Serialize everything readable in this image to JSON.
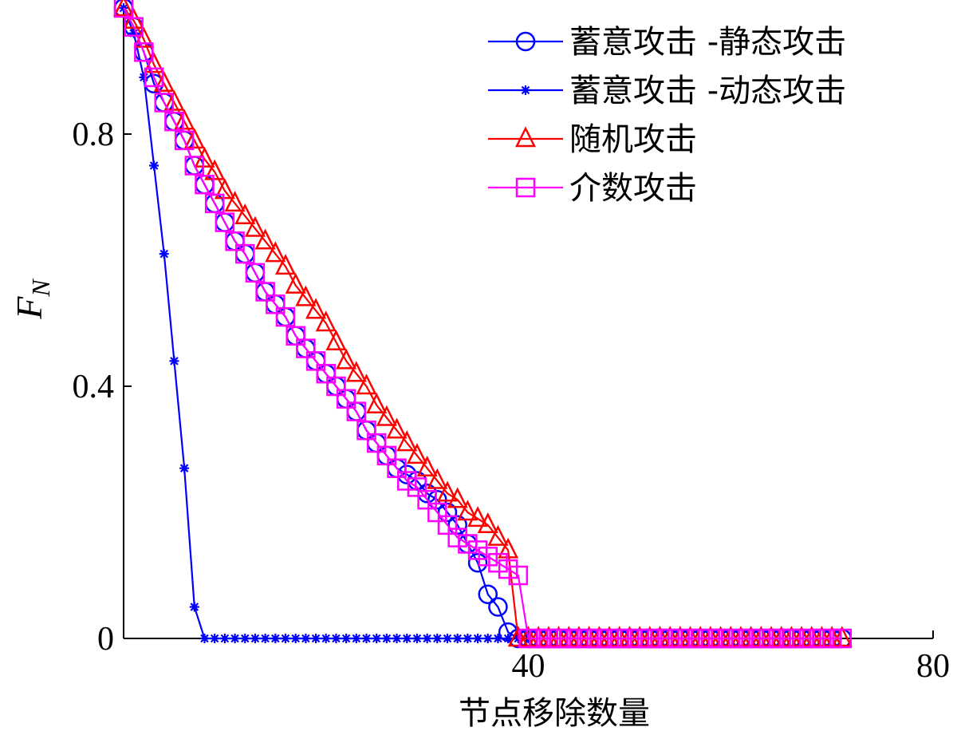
{
  "chart_data": {
    "type": "line",
    "title": "",
    "xlabel": "节点移除数量",
    "ylabel": "F",
    "ylabel_subscript": "N",
    "xlim": [
      0,
      80
    ],
    "ylim": [
      0,
      1
    ],
    "xticks": [
      40,
      80
    ],
    "yticks": [
      0,
      0.4,
      0.8
    ],
    "ytick_labels": [
      "0",
      "0.4",
      "0.8"
    ],
    "grid": false,
    "legend_position": "top-right",
    "series": [
      {
        "name": "蓄意攻击 -静态攻击",
        "color": "#0000ff",
        "marker": "circle",
        "x": [
          0,
          1,
          2,
          3,
          4,
          5,
          6,
          7,
          8,
          9,
          10,
          11,
          12,
          13,
          14,
          15,
          16,
          17,
          18,
          19,
          20,
          21,
          22,
          23,
          24,
          25,
          26,
          27,
          28,
          29,
          30,
          31,
          32,
          33,
          34,
          35,
          36,
          37,
          38,
          39,
          40,
          41,
          42,
          43,
          44,
          45,
          46,
          47,
          48,
          49,
          50,
          51,
          52,
          53,
          54,
          55,
          56,
          57,
          58,
          59,
          60,
          61,
          62,
          63,
          64,
          65,
          66,
          67,
          68,
          69,
          70,
          71
        ],
        "y": [
          1.0,
          0.97,
          0.93,
          0.88,
          0.85,
          0.82,
          0.79,
          0.75,
          0.72,
          0.69,
          0.66,
          0.63,
          0.61,
          0.58,
          0.55,
          0.53,
          0.51,
          0.48,
          0.46,
          0.44,
          0.42,
          0.4,
          0.38,
          0.36,
          0.33,
          0.31,
          0.29,
          0.27,
          0.26,
          0.25,
          0.23,
          0.22,
          0.2,
          0.18,
          0.15,
          0.12,
          0.07,
          0.05,
          0.01,
          0,
          0,
          0,
          0,
          0,
          0,
          0,
          0,
          0,
          0,
          0,
          0,
          0,
          0,
          0,
          0,
          0,
          0,
          0,
          0,
          0,
          0,
          0,
          0,
          0,
          0,
          0,
          0,
          0,
          0,
          0,
          0,
          0
        ]
      },
      {
        "name": "蓄意攻击 -动态攻击",
        "color": "#0000ff",
        "marker": "star",
        "x": [
          0,
          1,
          2,
          3,
          4,
          5,
          6,
          7,
          8,
          9,
          10,
          11,
          12,
          13,
          14,
          15,
          16,
          17,
          18,
          19,
          20,
          21,
          22,
          23,
          24,
          25,
          26,
          27,
          28,
          29,
          30,
          31,
          32,
          33,
          34,
          35,
          36,
          37,
          38,
          39,
          40
        ],
        "y": [
          1.0,
          0.96,
          0.89,
          0.75,
          0.61,
          0.44,
          0.27,
          0.05,
          0,
          0,
          0,
          0,
          0,
          0,
          0,
          0,
          0,
          0,
          0,
          0,
          0,
          0,
          0,
          0,
          0,
          0,
          0,
          0,
          0,
          0,
          0,
          0,
          0,
          0,
          0,
          0,
          0,
          0,
          0,
          0,
          0
        ]
      },
      {
        "name": "随机攻击",
        "color": "#ff0000",
        "marker": "triangle",
        "x": [
          0,
          1,
          2,
          3,
          4,
          5,
          6,
          7,
          8,
          9,
          10,
          11,
          12,
          13,
          14,
          15,
          16,
          17,
          18,
          19,
          20,
          21,
          22,
          23,
          24,
          25,
          26,
          27,
          28,
          29,
          30,
          31,
          32,
          33,
          34,
          35,
          36,
          37,
          38,
          39,
          40,
          41,
          42,
          43,
          44,
          45,
          46,
          47,
          48,
          49,
          50,
          51,
          52,
          53,
          54,
          55,
          56,
          57,
          58,
          59,
          60,
          61,
          62,
          63,
          64,
          65,
          66,
          67,
          68,
          69,
          70,
          71
        ],
        "y": [
          1.0,
          0.98,
          0.95,
          0.91,
          0.88,
          0.85,
          0.82,
          0.79,
          0.76,
          0.74,
          0.71,
          0.69,
          0.67,
          0.65,
          0.63,
          0.61,
          0.59,
          0.56,
          0.54,
          0.52,
          0.5,
          0.47,
          0.44,
          0.42,
          0.4,
          0.37,
          0.35,
          0.33,
          0.31,
          0.29,
          0.27,
          0.25,
          0.23,
          0.22,
          0.2,
          0.19,
          0.18,
          0.16,
          0.14,
          0,
          0,
          0,
          0,
          0,
          0,
          0,
          0,
          0,
          0,
          0,
          0,
          0,
          0,
          0,
          0,
          0,
          0,
          0,
          0,
          0,
          0,
          0,
          0,
          0,
          0,
          0,
          0,
          0,
          0,
          0,
          0,
          0
        ]
      },
      {
        "name": "介数攻击",
        "color": "#ff00ff",
        "marker": "square",
        "x": [
          0,
          1,
          2,
          3,
          4,
          5,
          6,
          7,
          8,
          9,
          10,
          11,
          12,
          13,
          14,
          15,
          16,
          17,
          18,
          19,
          20,
          21,
          22,
          23,
          24,
          25,
          26,
          27,
          28,
          29,
          30,
          31,
          32,
          33,
          34,
          35,
          36,
          37,
          38,
          39,
          40,
          41,
          42,
          43,
          44,
          45,
          46,
          47,
          48,
          49,
          50,
          51,
          52,
          53,
          54,
          55,
          56,
          57,
          58,
          59,
          60,
          61,
          62,
          63,
          64,
          65,
          66,
          67,
          68,
          69,
          70,
          71
        ],
        "y": [
          1.0,
          0.97,
          0.93,
          0.89,
          0.85,
          0.82,
          0.79,
          0.75,
          0.72,
          0.69,
          0.66,
          0.63,
          0.61,
          0.58,
          0.55,
          0.53,
          0.51,
          0.48,
          0.46,
          0.44,
          0.42,
          0.4,
          0.38,
          0.36,
          0.33,
          0.31,
          0.29,
          0.27,
          0.25,
          0.24,
          0.22,
          0.2,
          0.18,
          0.16,
          0.15,
          0.14,
          0.13,
          0.12,
          0.11,
          0.1,
          0,
          0,
          0,
          0,
          0,
          0,
          0,
          0,
          0,
          0,
          0,
          0,
          0,
          0,
          0,
          0,
          0,
          0,
          0,
          0,
          0,
          0,
          0,
          0,
          0,
          0,
          0,
          0,
          0,
          0,
          0,
          0
        ]
      }
    ]
  }
}
